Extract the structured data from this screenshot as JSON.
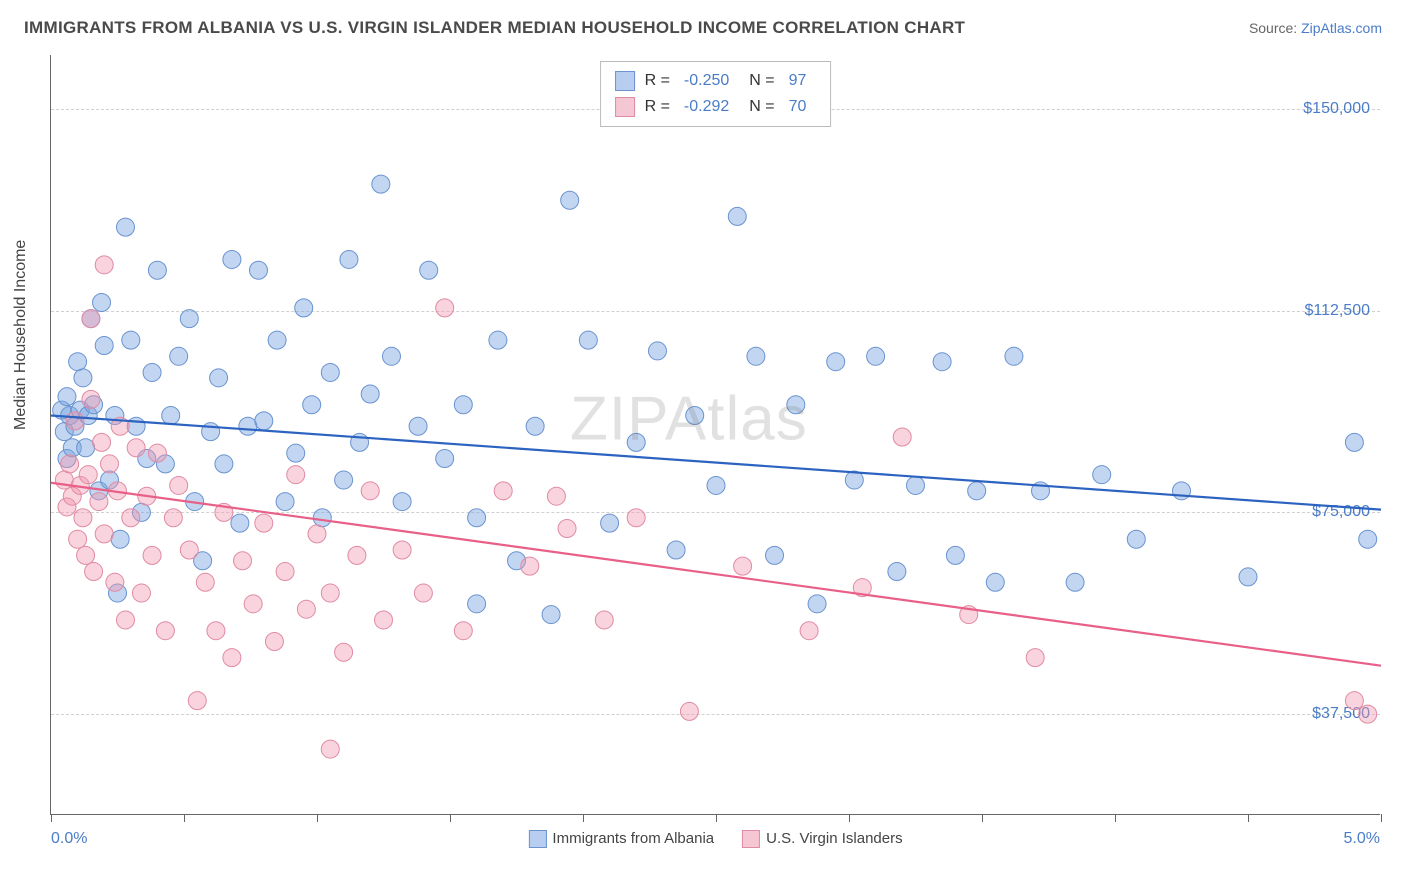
{
  "title": "IMMIGRANTS FROM ALBANIA VS U.S. VIRGIN ISLANDER MEDIAN HOUSEHOLD INCOME CORRELATION CHART",
  "source_label": "Source:",
  "source_link": "ZipAtlas.com",
  "ylabel": "Median Household Income",
  "xaxis": {
    "min": 0.0,
    "max": 5.0,
    "tick_positions": [
      0,
      0.5,
      1.0,
      1.5,
      2.0,
      2.5,
      3.0,
      3.5,
      4.0,
      4.5,
      5.0
    ],
    "label_min": "0.0%",
    "label_max": "5.0%"
  },
  "yaxis": {
    "min": 18750,
    "max": 160000,
    "ticks": [
      37500,
      75000,
      112500,
      150000
    ],
    "tick_labels": [
      "$37,500",
      "$75,000",
      "$112,500",
      "$150,000"
    ]
  },
  "grid_color": "#d0d0d0",
  "background_color": "#ffffff",
  "watermark": "ZIPAtlas",
  "series": [
    {
      "name": "Immigrants from Albania",
      "fill_color": "rgba(120,165,225,0.45)",
      "stroke_color": "#6a93cf",
      "line_color": "#2c63c0",
      "swatch_fill": "#b8cef0",
      "swatch_border": "#6a93cf",
      "marker_radius": 9,
      "R": "-0.250",
      "N": "97",
      "trend": {
        "x1": 0.0,
        "y1": 93000,
        "x2": 5.0,
        "y2": 75500
      },
      "points": [
        [
          0.04,
          94000
        ],
        [
          0.05,
          90000
        ],
        [
          0.06,
          85000
        ],
        [
          0.06,
          96500
        ],
        [
          0.07,
          93000
        ],
        [
          0.08,
          87000
        ],
        [
          0.09,
          91000
        ],
        [
          0.1,
          103000
        ],
        [
          0.11,
          94000
        ],
        [
          0.12,
          100000
        ],
        [
          0.13,
          87000
        ],
        [
          0.14,
          93000
        ],
        [
          0.15,
          111000
        ],
        [
          0.16,
          95000
        ],
        [
          0.18,
          79000
        ],
        [
          0.19,
          114000
        ],
        [
          0.2,
          106000
        ],
        [
          0.22,
          81000
        ],
        [
          0.24,
          93000
        ],
        [
          0.25,
          60000
        ],
        [
          0.26,
          70000
        ],
        [
          0.28,
          128000
        ],
        [
          0.3,
          107000
        ],
        [
          0.32,
          91000
        ],
        [
          0.34,
          75000
        ],
        [
          0.36,
          85000
        ],
        [
          0.38,
          101000
        ],
        [
          0.4,
          120000
        ],
        [
          0.43,
          84000
        ],
        [
          0.45,
          93000
        ],
        [
          0.48,
          104000
        ],
        [
          0.52,
          111000
        ],
        [
          0.54,
          77000
        ],
        [
          0.57,
          66000
        ],
        [
          0.6,
          90000
        ],
        [
          0.63,
          100000
        ],
        [
          0.65,
          84000
        ],
        [
          0.68,
          122000
        ],
        [
          0.71,
          73000
        ],
        [
          0.74,
          91000
        ],
        [
          0.78,
          120000
        ],
        [
          0.8,
          92000
        ],
        [
          0.85,
          107000
        ],
        [
          0.88,
          77000
        ],
        [
          0.92,
          86000
        ],
        [
          0.95,
          113000
        ],
        [
          0.98,
          95000
        ],
        [
          1.02,
          74000
        ],
        [
          1.05,
          101000
        ],
        [
          1.1,
          81000
        ],
        [
          1.12,
          122000
        ],
        [
          1.16,
          88000
        ],
        [
          1.2,
          97000
        ],
        [
          1.24,
          136000
        ],
        [
          1.28,
          104000
        ],
        [
          1.32,
          77000
        ],
        [
          1.38,
          91000
        ],
        [
          1.42,
          120000
        ],
        [
          1.48,
          85000
        ],
        [
          1.55,
          95000
        ],
        [
          1.6,
          74000
        ],
        [
          1.68,
          107000
        ],
        [
          1.75,
          66000
        ],
        [
          1.82,
          91000
        ],
        [
          1.88,
          56000
        ],
        [
          1.95,
          133000
        ],
        [
          2.02,
          107000
        ],
        [
          2.1,
          73000
        ],
        [
          1.6,
          58000
        ],
        [
          2.2,
          88000
        ],
        [
          2.28,
          105000
        ],
        [
          2.35,
          68000
        ],
        [
          2.42,
          93000
        ],
        [
          2.5,
          80000
        ],
        [
          2.58,
          130000
        ],
        [
          2.65,
          104000
        ],
        [
          2.72,
          67000
        ],
        [
          2.8,
          95000
        ],
        [
          2.88,
          58000
        ],
        [
          2.95,
          103000
        ],
        [
          3.02,
          81000
        ],
        [
          3.1,
          104000
        ],
        [
          3.18,
          64000
        ],
        [
          3.25,
          80000
        ],
        [
          3.35,
          103000
        ],
        [
          3.4,
          67000
        ],
        [
          3.48,
          79000
        ],
        [
          3.55,
          62000
        ],
        [
          3.62,
          104000
        ],
        [
          3.72,
          79000
        ],
        [
          3.85,
          62000
        ],
        [
          3.95,
          82000
        ],
        [
          4.08,
          70000
        ],
        [
          4.25,
          79000
        ],
        [
          4.5,
          63000
        ],
        [
          4.9,
          88000
        ],
        [
          4.95,
          70000
        ]
      ]
    },
    {
      "name": "U.S. Virgin Islanders",
      "fill_color": "rgba(240,150,175,0.42)",
      "stroke_color": "#e08ba3",
      "line_color": "#e85f88",
      "swatch_fill": "#f5c6d3",
      "swatch_border": "#e08ba3",
      "marker_radius": 9,
      "R": "-0.292",
      "N": "70",
      "trend": {
        "x1": 0.0,
        "y1": 80500,
        "x2": 5.0,
        "y2": 46500
      },
      "points": [
        [
          0.05,
          81000
        ],
        [
          0.06,
          76000
        ],
        [
          0.07,
          84000
        ],
        [
          0.08,
          78000
        ],
        [
          0.09,
          92000
        ],
        [
          0.1,
          70000
        ],
        [
          0.11,
          80000
        ],
        [
          0.12,
          74000
        ],
        [
          0.13,
          67000
        ],
        [
          0.14,
          82000
        ],
        [
          0.15,
          96000
        ],
        [
          0.16,
          64000
        ],
        [
          0.18,
          77000
        ],
        [
          0.19,
          88000
        ],
        [
          0.2,
          71000
        ],
        [
          0.22,
          84000
        ],
        [
          0.24,
          62000
        ],
        [
          0.25,
          79000
        ],
        [
          0.26,
          91000
        ],
        [
          0.28,
          55000
        ],
        [
          0.15,
          111000
        ],
        [
          0.3,
          74000
        ],
        [
          0.32,
          87000
        ],
        [
          0.34,
          60000
        ],
        [
          0.36,
          78000
        ],
        [
          0.38,
          67000
        ],
        [
          0.4,
          86000
        ],
        [
          0.43,
          53000
        ],
        [
          0.46,
          74000
        ],
        [
          0.48,
          80000
        ],
        [
          0.52,
          68000
        ],
        [
          0.55,
          40000
        ],
        [
          0.58,
          62000
        ],
        [
          0.62,
          53000
        ],
        [
          0.65,
          75000
        ],
        [
          0.68,
          48000
        ],
        [
          0.72,
          66000
        ],
        [
          0.76,
          58000
        ],
        [
          0.8,
          73000
        ],
        [
          0.84,
          51000
        ],
        [
          0.88,
          64000
        ],
        [
          0.92,
          82000
        ],
        [
          0.96,
          57000
        ],
        [
          1.0,
          71000
        ],
        [
          1.05,
          60000
        ],
        [
          0.2,
          121000
        ],
        [
          1.1,
          49000
        ],
        [
          1.15,
          67000
        ],
        [
          1.2,
          79000
        ],
        [
          1.25,
          55000
        ],
        [
          1.05,
          31000
        ],
        [
          1.32,
          68000
        ],
        [
          1.4,
          60000
        ],
        [
          1.48,
          113000
        ],
        [
          1.55,
          53000
        ],
        [
          1.7,
          79000
        ],
        [
          1.8,
          65000
        ],
        [
          1.94,
          72000
        ],
        [
          1.9,
          78000
        ],
        [
          2.08,
          55000
        ],
        [
          2.2,
          74000
        ],
        [
          2.4,
          38000
        ],
        [
          2.6,
          65000
        ],
        [
          2.85,
          53000
        ],
        [
          3.05,
          61000
        ],
        [
          3.2,
          89000
        ],
        [
          3.45,
          56000
        ],
        [
          3.7,
          48000
        ],
        [
          4.95,
          37500
        ],
        [
          4.9,
          40000
        ]
      ]
    }
  ],
  "legend_bottom": [
    {
      "label": "Immigrants from Albania"
    },
    {
      "label": "U.S. Virgin Islanders"
    }
  ]
}
